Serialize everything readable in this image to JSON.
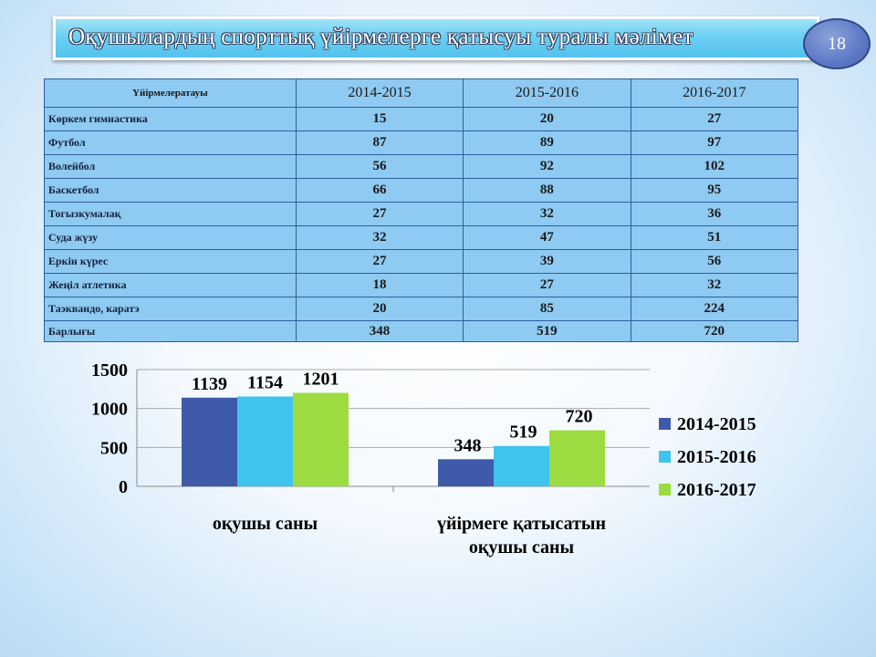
{
  "title": "Оқушылардың   спорттық  үйірмелерге қатысуы туралы мәлімет",
  "page_number": "18",
  "table": {
    "headers": [
      "Үйірмелератауы",
      "2014-2015",
      "2015-2016",
      "2016-2017"
    ],
    "rows": [
      {
        "name": "Көркем гимнастика",
        "v": [
          "15",
          "20",
          "27"
        ]
      },
      {
        "name": "Футбол",
        "v": [
          "87",
          "89",
          "97"
        ]
      },
      {
        "name": "Волейбол",
        "v": [
          "56",
          "92",
          "102"
        ]
      },
      {
        "name": "Баскетбол",
        "v": [
          "66",
          "88",
          "95"
        ]
      },
      {
        "name": "Тогызкумалақ",
        "v": [
          "27",
          "32",
          "36"
        ]
      },
      {
        "name": "Суда жүзу",
        "v": [
          "32",
          "47",
          "51"
        ]
      },
      {
        "name": "Еркін күрес",
        "v": [
          "27",
          "39",
          "56"
        ]
      },
      {
        "name": "Жеңіл атлетика",
        "v": [
          "18",
          "27",
          "32"
        ]
      },
      {
        "name": "Таэквандо, каратэ",
        "v": [
          "20",
          "85",
          "224"
        ]
      },
      {
        "name": "Барлығы",
        "v": [
          "348",
          "519",
          "720"
        ]
      }
    ]
  },
  "chart_data": {
    "type": "bar",
    "categories": [
      "оқушы саны",
      "үйірмеге қатысатын оқушы саны"
    ],
    "category_lines": [
      [
        "оқушы саны"
      ],
      [
        "үйірмеге қатысатын",
        "оқушы саны"
      ]
    ],
    "series": [
      {
        "name": "2014-2015",
        "values": [
          1139,
          348
        ],
        "color": "#3f5aa8"
      },
      {
        "name": "2015-2016",
        "values": [
          1154,
          519
        ],
        "color": "#3fc4ee"
      },
      {
        "name": "2016-2017",
        "values": [
          1201,
          720
        ],
        "color": "#9ddc40"
      }
    ],
    "ylim": [
      0,
      1500
    ],
    "yticks": [
      0,
      500,
      1000,
      1500
    ],
    "grid": true,
    "legend": "right"
  }
}
